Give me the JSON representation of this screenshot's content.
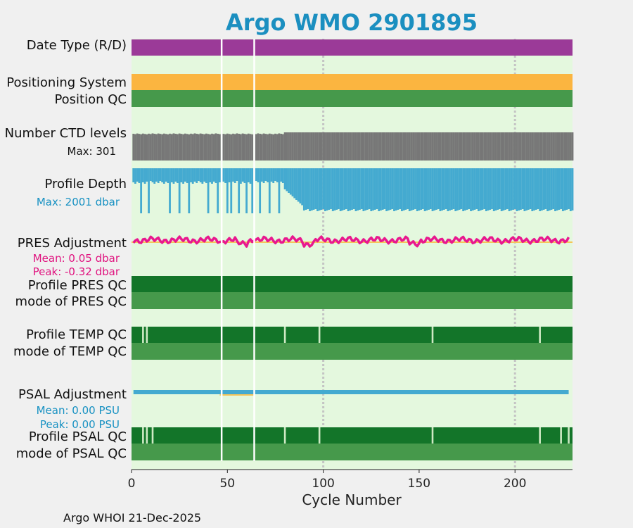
{
  "title": "Argo WMO 2901895",
  "footer": "Argo WHOI 21-Dec-2025",
  "colors": {
    "title": "#1b8fc0",
    "background": "#e4f8de",
    "purple": "#9b3a98",
    "orange": "#fbb540",
    "green_light": "#46994b",
    "green_dark": "#137529",
    "gray": "#777777",
    "blue": "#44aad0",
    "magenta": "#e8188e",
    "gold": "#f5c65a",
    "blue_text": "#1791c2",
    "magenta_text": "#e0137f"
  },
  "chart_data": {
    "type": "timeline",
    "title": "Argo WMO 2901895",
    "xlabel": "Cycle Number",
    "xlim": [
      0,
      230
    ],
    "xticks": [
      0,
      50,
      100,
      150,
      200
    ],
    "grid_x": [
      100,
      200
    ],
    "gap_cycles": [
      47,
      64
    ],
    "rows": [
      {
        "label": "Date Type (R/D)",
        "kind": "bar",
        "color": "purple"
      },
      {
        "label": "Positioning System",
        "kind": "bar",
        "color": "orange"
      },
      {
        "label": "Position QC",
        "kind": "bar",
        "color": "green_light"
      },
      {
        "label": "Number CTD levels",
        "kind": "bars",
        "color": "gray",
        "note": "Max: 301",
        "max": 301,
        "typical": 290,
        "dip_cycle": 64,
        "dip_value": 275
      },
      {
        "label": "Profile Depth",
        "kind": "bars",
        "color": "blue",
        "note": "Max: 2001 dbar",
        "max": 2001,
        "shallow_before_80": 1900,
        "after_drop": 1030,
        "drop_cycle": 90,
        "deep_spikes": [
          5,
          9,
          20,
          25,
          30,
          40,
          45,
          50,
          52,
          56,
          60,
          63,
          67,
          72,
          77,
          81
        ]
      },
      {
        "label": "PRES Adjustment",
        "kind": "line",
        "color": "magenta",
        "notes": [
          "Mean: 0.05 dbar",
          "Peak: -0.32 dbar"
        ],
        "mean": 0.05,
        "peak": -0.32
      },
      {
        "label": "Profile PRES QC",
        "kind": "bar",
        "color": "green_dark"
      },
      {
        "label": "mode of PRES QC",
        "kind": "bar",
        "color": "green_light"
      },
      {
        "label": "Profile TEMP QC",
        "kind": "bar",
        "color": "green_dark",
        "light_cycles": [
          6,
          8,
          80,
          98,
          157,
          213
        ]
      },
      {
        "label": "mode of TEMP QC",
        "kind": "bar",
        "color": "green_light"
      },
      {
        "label": "PSAL Adjustment",
        "kind": "line",
        "color": "blue",
        "notes": [
          "Mean: 0.00 PSU",
          "Peak: 0.00 PSU"
        ],
        "mean": 0.0,
        "peak": 0.0
      },
      {
        "label": "Profile PSAL QC",
        "kind": "bar",
        "color": "green_dark",
        "light_cycles": [
          6,
          8,
          11,
          80,
          98,
          157,
          213,
          224,
          228
        ]
      },
      {
        "label": "mode of PSAL QC",
        "kind": "bar",
        "color": "green_light"
      }
    ]
  }
}
